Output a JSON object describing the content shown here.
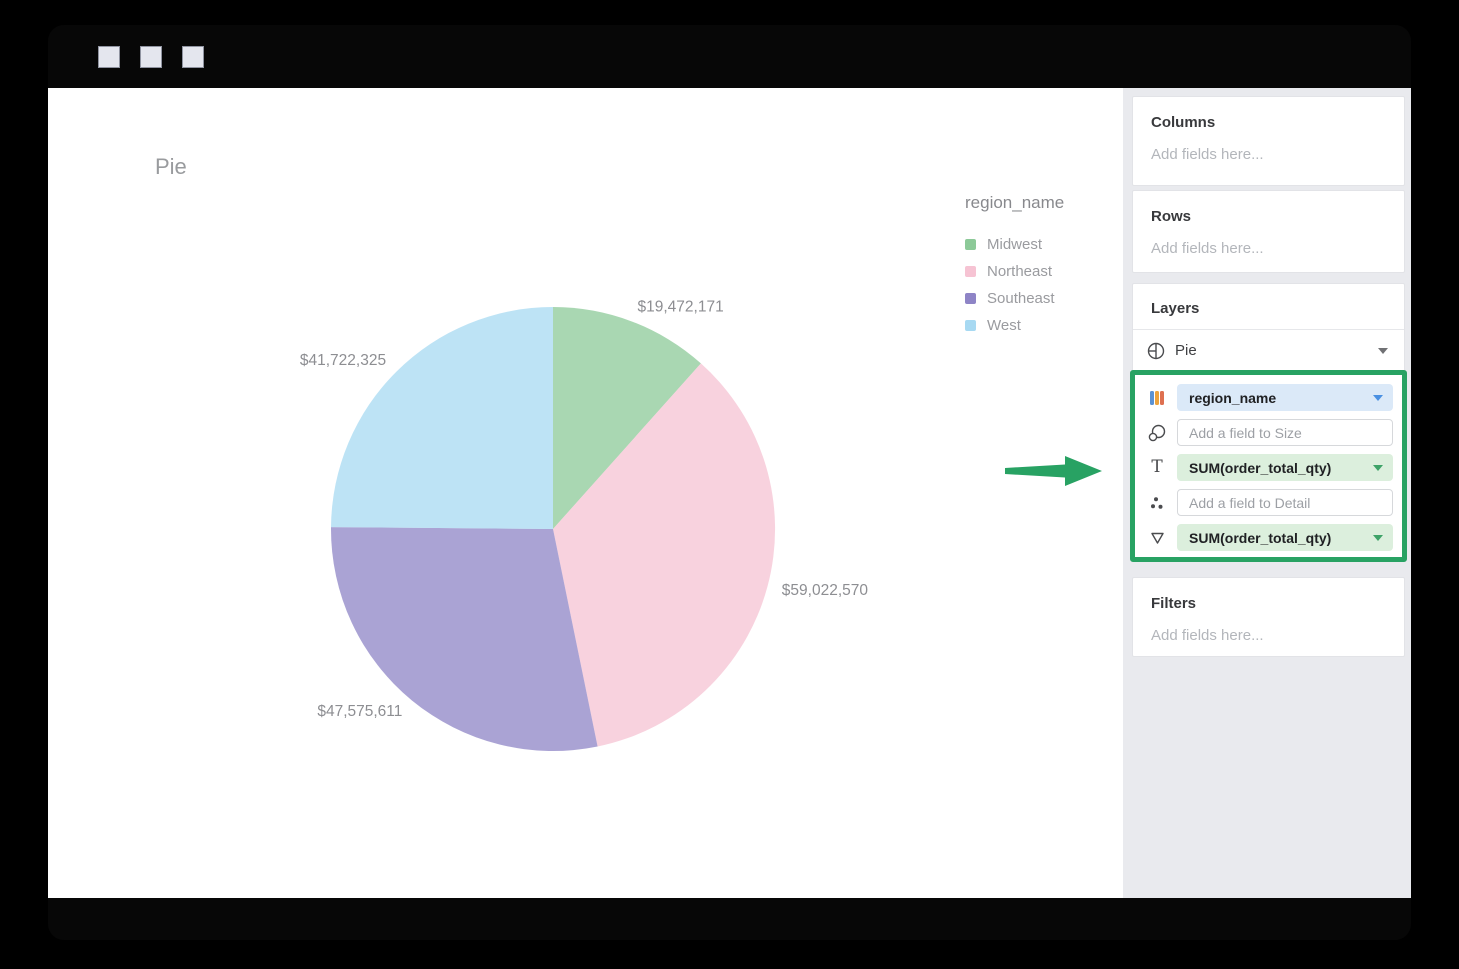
{
  "window": {
    "controls": 3
  },
  "canvas": {
    "title": "Pie"
  },
  "chart_data": {
    "type": "pie",
    "title": "Pie",
    "legend_title": "region_name",
    "categories": [
      "Midwest",
      "Northeast",
      "Southeast",
      "West"
    ],
    "values": [
      19472171,
      59022570,
      47575611,
      41722325
    ],
    "labels": [
      "$19,472,171",
      "$59,022,570",
      "$47,575,611",
      "$41,722,325"
    ],
    "colors": [
      "#8cc998",
      "#f6c3d3",
      "#8e84c6",
      "#a7d9f2"
    ],
    "slice_opacity": 0.75,
    "start_angle_deg": 0,
    "direction": "clockwise",
    "legend_position": "right"
  },
  "sidebar": {
    "columns": {
      "label": "Columns",
      "placeholder": "Add fields here..."
    },
    "rows": {
      "label": "Rows",
      "placeholder": "Add fields here..."
    },
    "layers": {
      "label": "Layers",
      "selected_layer": "Pie",
      "wells": [
        {
          "icon": "color-bars-icon",
          "kind": "pill-blue",
          "value": "region_name"
        },
        {
          "icon": "size-bubbles-icon",
          "kind": "input",
          "placeholder": "Add a field to Size"
        },
        {
          "icon": "text-icon",
          "kind": "pill-green",
          "value": "SUM(order_total_qty)"
        },
        {
          "icon": "detail-dots-icon",
          "kind": "input",
          "placeholder": "Add a field to Detail"
        },
        {
          "icon": "tooltip-triangle-icon",
          "kind": "pill-green",
          "value": "SUM(order_total_qty)"
        }
      ]
    },
    "filters": {
      "label": "Filters",
      "placeholder": "Add fields here..."
    }
  },
  "annotations": {
    "highlight_color": "#28a263",
    "arrow_color": "#28a263"
  }
}
